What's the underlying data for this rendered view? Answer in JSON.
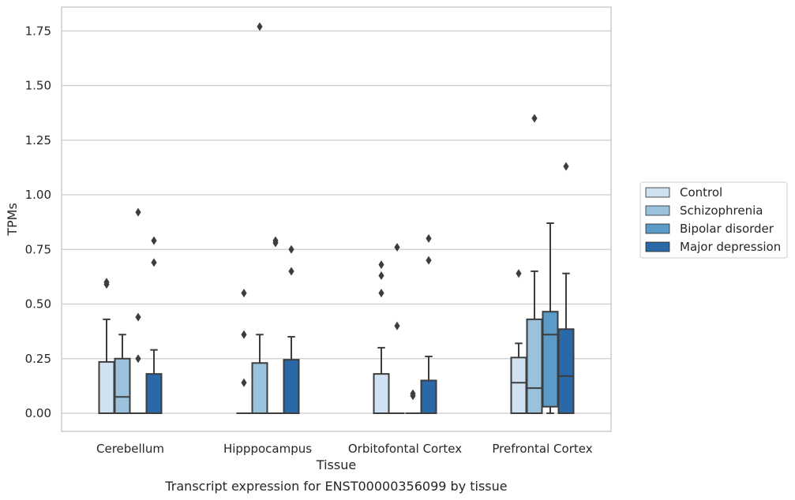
{
  "chart_data": {
    "type": "box",
    "caption": "Transcript expression for ENST00000356099 by tissue",
    "xlabel": "Tissue",
    "ylabel": "TPMs",
    "ylim": [
      -0.09,
      1.86
    ],
    "yticks": [
      "0.00",
      "0.25",
      "0.50",
      "0.75",
      "1.00",
      "1.25",
      "1.50",
      "1.75"
    ],
    "grid": "horizontal",
    "legend_position": "right",
    "categories": [
      "Cerebellum",
      "Hipppocampus",
      "Orbitofontal Cortex",
      "Prefrontal Cortex"
    ],
    "series": [
      {
        "name": "Control",
        "color": "#d0e1f2",
        "boxes": [
          {
            "q1": 0,
            "median": 0,
            "q3": 0.235,
            "whisker_low": 0,
            "whisker_high": 0.43,
            "outliers": [
              0.59,
              0.6
            ]
          },
          {
            "q1": 0,
            "median": 0,
            "q3": 0,
            "whisker_low": 0,
            "whisker_high": 0,
            "outliers": [
              0.14,
              0.36,
              0.55
            ]
          },
          {
            "q1": 0,
            "median": 0,
            "q3": 0.18,
            "whisker_low": 0,
            "whisker_high": 0.3,
            "outliers": [
              0.55,
              0.63,
              0.68
            ]
          },
          {
            "q1": 0,
            "median": 0.14,
            "q3": 0.255,
            "whisker_low": 0,
            "whisker_high": 0.32,
            "outliers": [
              0.64
            ]
          }
        ]
      },
      {
        "name": "Schizophrenia",
        "color": "#9ac2dd",
        "boxes": [
          {
            "q1": 0,
            "median": 0.075,
            "q3": 0.25,
            "whisker_low": 0,
            "whisker_high": 0.36,
            "outliers": []
          },
          {
            "q1": 0,
            "median": 0,
            "q3": 0.23,
            "whisker_low": 0,
            "whisker_high": 0.36,
            "outliers": [
              1.77
            ]
          },
          {
            "q1": 0,
            "median": 0,
            "q3": 0,
            "whisker_low": 0,
            "whisker_high": 0,
            "outliers": [
              0.4,
              0.76
            ]
          },
          {
            "q1": 0,
            "median": 0.115,
            "q3": 0.43,
            "whisker_low": 0,
            "whisker_high": 0.65,
            "outliers": [
              1.35
            ]
          }
        ]
      },
      {
        "name": "Bipolar disorder",
        "color": "#5b9bc8",
        "boxes": [
          {
            "q1": 0,
            "median": 0,
            "q3": 0,
            "whisker_low": 0,
            "whisker_high": 0,
            "outliers": [
              0.25,
              0.44,
              0.92
            ]
          },
          {
            "q1": 0,
            "median": 0,
            "q3": 0,
            "whisker_low": 0,
            "whisker_high": 0,
            "outliers": [
              0.78,
              0.79
            ]
          },
          {
            "q1": 0,
            "median": 0,
            "q3": 0,
            "whisker_low": 0,
            "whisker_high": 0,
            "outliers": [
              0.08,
              0.09
            ]
          },
          {
            "q1": 0.03,
            "median": 0.36,
            "q3": 0.465,
            "whisker_low": 0,
            "whisker_high": 0.87,
            "outliers": []
          }
        ]
      },
      {
        "name": "Major depression",
        "color": "#2a68a8",
        "boxes": [
          {
            "q1": 0,
            "median": 0,
            "q3": 0.18,
            "whisker_low": 0,
            "whisker_high": 0.29,
            "outliers": [
              0.69,
              0.79
            ]
          },
          {
            "q1": 0,
            "median": 0,
            "q3": 0.245,
            "whisker_low": 0,
            "whisker_high": 0.35,
            "outliers": [
              0.65,
              0.75
            ]
          },
          {
            "q1": 0,
            "median": 0,
            "q3": 0.15,
            "whisker_low": 0,
            "whisker_high": 0.26,
            "outliers": [
              0.7,
              0.8
            ]
          },
          {
            "q1": 0,
            "median": 0.17,
            "q3": 0.385,
            "whisker_low": 0,
            "whisker_high": 0.64,
            "outliers": [
              1.13
            ]
          }
        ]
      }
    ]
  }
}
